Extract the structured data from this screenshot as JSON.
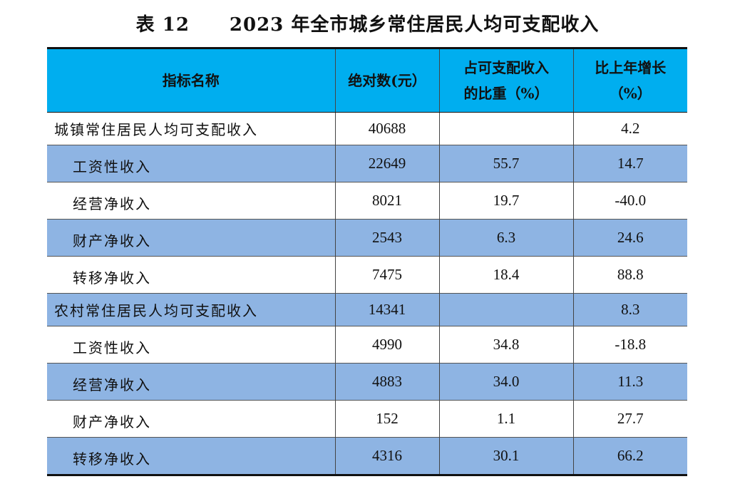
{
  "title": {
    "table_number": "表 12",
    "text": "2023 年全市城乡常住居民人均可支配收入"
  },
  "table": {
    "headers": {
      "name": "指标名称",
      "absolute": "绝对数(元）",
      "share_line1": "占可支配收入",
      "share_line2": "的比重（%）",
      "growth_line1": "比上年增长",
      "growth_line2": "（%）"
    },
    "rows": [
      {
        "name": "城镇常住居民人均可支配收入",
        "absolute": "40688",
        "share": "",
        "growth": "4.2"
      },
      {
        "name": "工资性收入",
        "absolute": "22649",
        "share": "55.7",
        "growth": "14.7"
      },
      {
        "name": "经营净收入",
        "absolute": "8021",
        "share": "19.7",
        "growth": "-40.0"
      },
      {
        "name": "财产净收入",
        "absolute": "2543",
        "share": "6.3",
        "growth": "24.6"
      },
      {
        "name": "转移净收入",
        "absolute": "7475",
        "share": "18.4",
        "growth": "88.8"
      },
      {
        "name": "农村常住居民人均可支配收入",
        "absolute": "14341",
        "share": "",
        "growth": "8.3"
      },
      {
        "name": "工资性收入",
        "absolute": "4990",
        "share": "34.8",
        "growth": "-18.8"
      },
      {
        "name": "经营净收入",
        "absolute": "4883",
        "share": "34.0",
        "growth": "11.3"
      },
      {
        "name": "财产净收入",
        "absolute": "152",
        "share": "1.1",
        "growth": "27.7"
      },
      {
        "name": "转移净收入",
        "absolute": "4316",
        "share": "30.1",
        "growth": "66.2"
      }
    ]
  },
  "colors": {
    "header_bg": "#00aeef",
    "alt_row_bg": "#8eb4e3",
    "rule": "#111111"
  }
}
